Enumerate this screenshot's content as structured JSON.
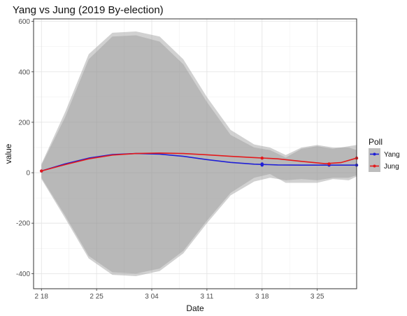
{
  "chart_data": {
    "type": "line",
    "title": "Yang vs Jung (2019 By-election)",
    "xlabel": "Date",
    "ylabel": "value",
    "x_ticks": [
      "2 18",
      "2 25",
      "3 04",
      "3 11",
      "3 18",
      "3 25"
    ],
    "x_tick_days": [
      0,
      7,
      14,
      21,
      28,
      35
    ],
    "y_ticks": [
      -400,
      -200,
      0,
      200,
      400,
      600
    ],
    "xlim": [
      -1,
      40
    ],
    "ylim": [
      -460,
      610
    ],
    "grid": true,
    "legend": {
      "title": "Poll",
      "position": "right"
    },
    "series": [
      {
        "name": "Yang",
        "color": "#1f1fd6",
        "points": [
          [
            0,
            7
          ],
          [
            28,
            30
          ],
          [
            28,
            35
          ],
          [
            36.5,
            30
          ],
          [
            40,
            30
          ]
        ],
        "smooth": [
          [
            0,
            7
          ],
          [
            3,
            35
          ],
          [
            6,
            58
          ],
          [
            9,
            72
          ],
          [
            12,
            76
          ],
          [
            15,
            74
          ],
          [
            18,
            65
          ],
          [
            21,
            52
          ],
          [
            24,
            41
          ],
          [
            27,
            34
          ],
          [
            30,
            31
          ],
          [
            33,
            30
          ],
          [
            36,
            30
          ],
          [
            39,
            30
          ],
          [
            40,
            30
          ]
        ],
        "band_upper": [
          [
            0,
            35
          ],
          [
            3,
            240
          ],
          [
            6,
            470
          ],
          [
            9,
            555
          ],
          [
            12,
            560
          ],
          [
            15,
            540
          ],
          [
            18,
            450
          ],
          [
            21,
            300
          ],
          [
            24,
            170
          ],
          [
            27,
            112
          ],
          [
            29,
            100
          ],
          [
            31,
            70
          ],
          [
            33,
            100
          ],
          [
            35,
            110
          ],
          [
            37,
            100
          ],
          [
            39,
            100
          ],
          [
            40,
            90
          ]
        ],
        "band_lower": [
          [
            0,
            -25
          ],
          [
            3,
            -180
          ],
          [
            6,
            -340
          ],
          [
            9,
            -405
          ],
          [
            12,
            -410
          ],
          [
            15,
            -390
          ],
          [
            18,
            -320
          ],
          [
            21,
            -200
          ],
          [
            24,
            -90
          ],
          [
            27,
            -35
          ],
          [
            29,
            -20
          ],
          [
            31,
            -30
          ],
          [
            33,
            -25
          ],
          [
            35,
            -30
          ],
          [
            37,
            -20
          ],
          [
            39,
            -20
          ],
          [
            40,
            -10
          ]
        ]
      },
      {
        "name": "Jung",
        "color": "#e31a1c",
        "points": [
          [
            0,
            7
          ],
          [
            28,
            58
          ],
          [
            36.5,
            35
          ],
          [
            40,
            58
          ]
        ],
        "smooth": [
          [
            0,
            7
          ],
          [
            3,
            32
          ],
          [
            6,
            55
          ],
          [
            9,
            70
          ],
          [
            12,
            76
          ],
          [
            15,
            78
          ],
          [
            18,
            76
          ],
          [
            21,
            71
          ],
          [
            24,
            65
          ],
          [
            27,
            60
          ],
          [
            30,
            55
          ],
          [
            33,
            45
          ],
          [
            36,
            36
          ],
          [
            38,
            40
          ],
          [
            40,
            58
          ]
        ],
        "band_upper": [
          [
            0,
            30
          ],
          [
            3,
            220
          ],
          [
            6,
            450
          ],
          [
            9,
            540
          ],
          [
            12,
            545
          ],
          [
            15,
            520
          ],
          [
            18,
            430
          ],
          [
            21,
            280
          ],
          [
            24,
            150
          ],
          [
            27,
            100
          ],
          [
            29,
            90
          ],
          [
            31,
            60
          ],
          [
            33,
            95
          ],
          [
            35,
            105
          ],
          [
            37,
            95
          ],
          [
            39,
            105
          ],
          [
            40,
            110
          ]
        ],
        "band_lower": [
          [
            0,
            -20
          ],
          [
            3,
            -170
          ],
          [
            6,
            -330
          ],
          [
            9,
            -395
          ],
          [
            12,
            -400
          ],
          [
            15,
            -380
          ],
          [
            18,
            -310
          ],
          [
            21,
            -190
          ],
          [
            24,
            -80
          ],
          [
            27,
            -20
          ],
          [
            29,
            -5
          ],
          [
            31,
            -40
          ],
          [
            33,
            -40
          ],
          [
            35,
            -40
          ],
          [
            37,
            -25
          ],
          [
            39,
            -30
          ],
          [
            40,
            -15
          ]
        ]
      }
    ]
  }
}
